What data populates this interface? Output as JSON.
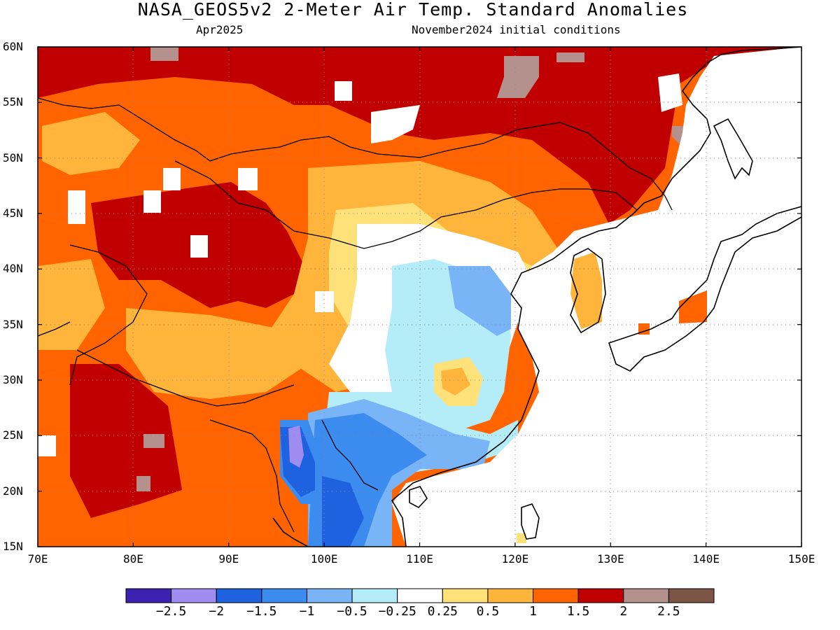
{
  "title": "NASA_GEOS5v2 2-Meter Air Temp. Standard Anomalies",
  "target_month": "Apr2025",
  "init_conditions": "November2024 initial conditions",
  "lat_labels": [
    "60N",
    "55N",
    "50N",
    "45N",
    "40N",
    "35N",
    "30N",
    "25N",
    "20N",
    "15N"
  ],
  "lon_labels": [
    "70E",
    "80E",
    "90E",
    "100E",
    "110E",
    "120E",
    "130E",
    "140E",
    "150E"
  ],
  "colorbar": {
    "colors": [
      "#3b22b0",
      "#9f8cf0",
      "#1f62e0",
      "#3c8cf0",
      "#78b4f6",
      "#b4ecf8",
      "#ffffff",
      "#ffe17a",
      "#ffb43c",
      "#ff6400",
      "#c00000",
      "#b4918c",
      "#7d5546"
    ],
    "labels": [
      "−2.5",
      "−2",
      "−1.5",
      "−1",
      "−0.5",
      "−0.25",
      "0.25",
      "0.5",
      "1",
      "1.5",
      "2",
      "2.5"
    ]
  }
}
